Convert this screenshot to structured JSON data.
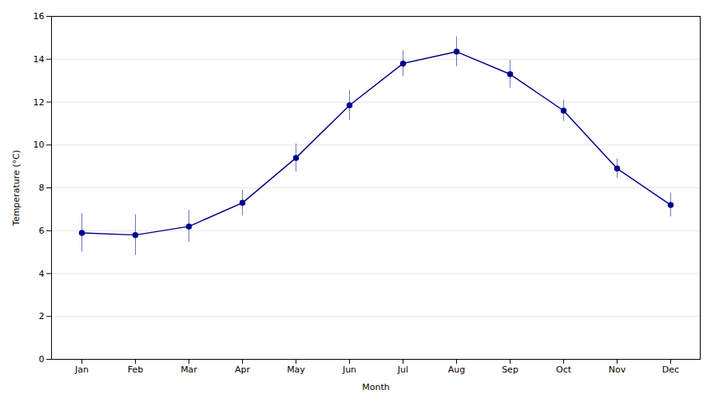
{
  "chart_data": {
    "type": "line",
    "xlabel": "Month",
    "ylabel": "Temperature (°C)",
    "categories": [
      "Jan",
      "Feb",
      "Mar",
      "Apr",
      "May",
      "Jun",
      "Jul",
      "Aug",
      "Sep",
      "Oct",
      "Nov",
      "Dec"
    ],
    "values": [
      5.9,
      5.8,
      6.2,
      7.3,
      9.4,
      11.85,
      13.8,
      14.35,
      13.3,
      11.6,
      8.9,
      7.2
    ],
    "error": [
      0.9,
      0.95,
      0.75,
      0.6,
      0.65,
      0.7,
      0.6,
      0.7,
      0.65,
      0.5,
      0.45,
      0.55
    ],
    "color": "#00008B",
    "marker": "circle",
    "line_style": "solid",
    "ylim": [
      0,
      16
    ],
    "yticks": [
      0,
      2,
      4,
      6,
      8,
      10,
      12,
      14,
      16
    ],
    "grid": true
  }
}
